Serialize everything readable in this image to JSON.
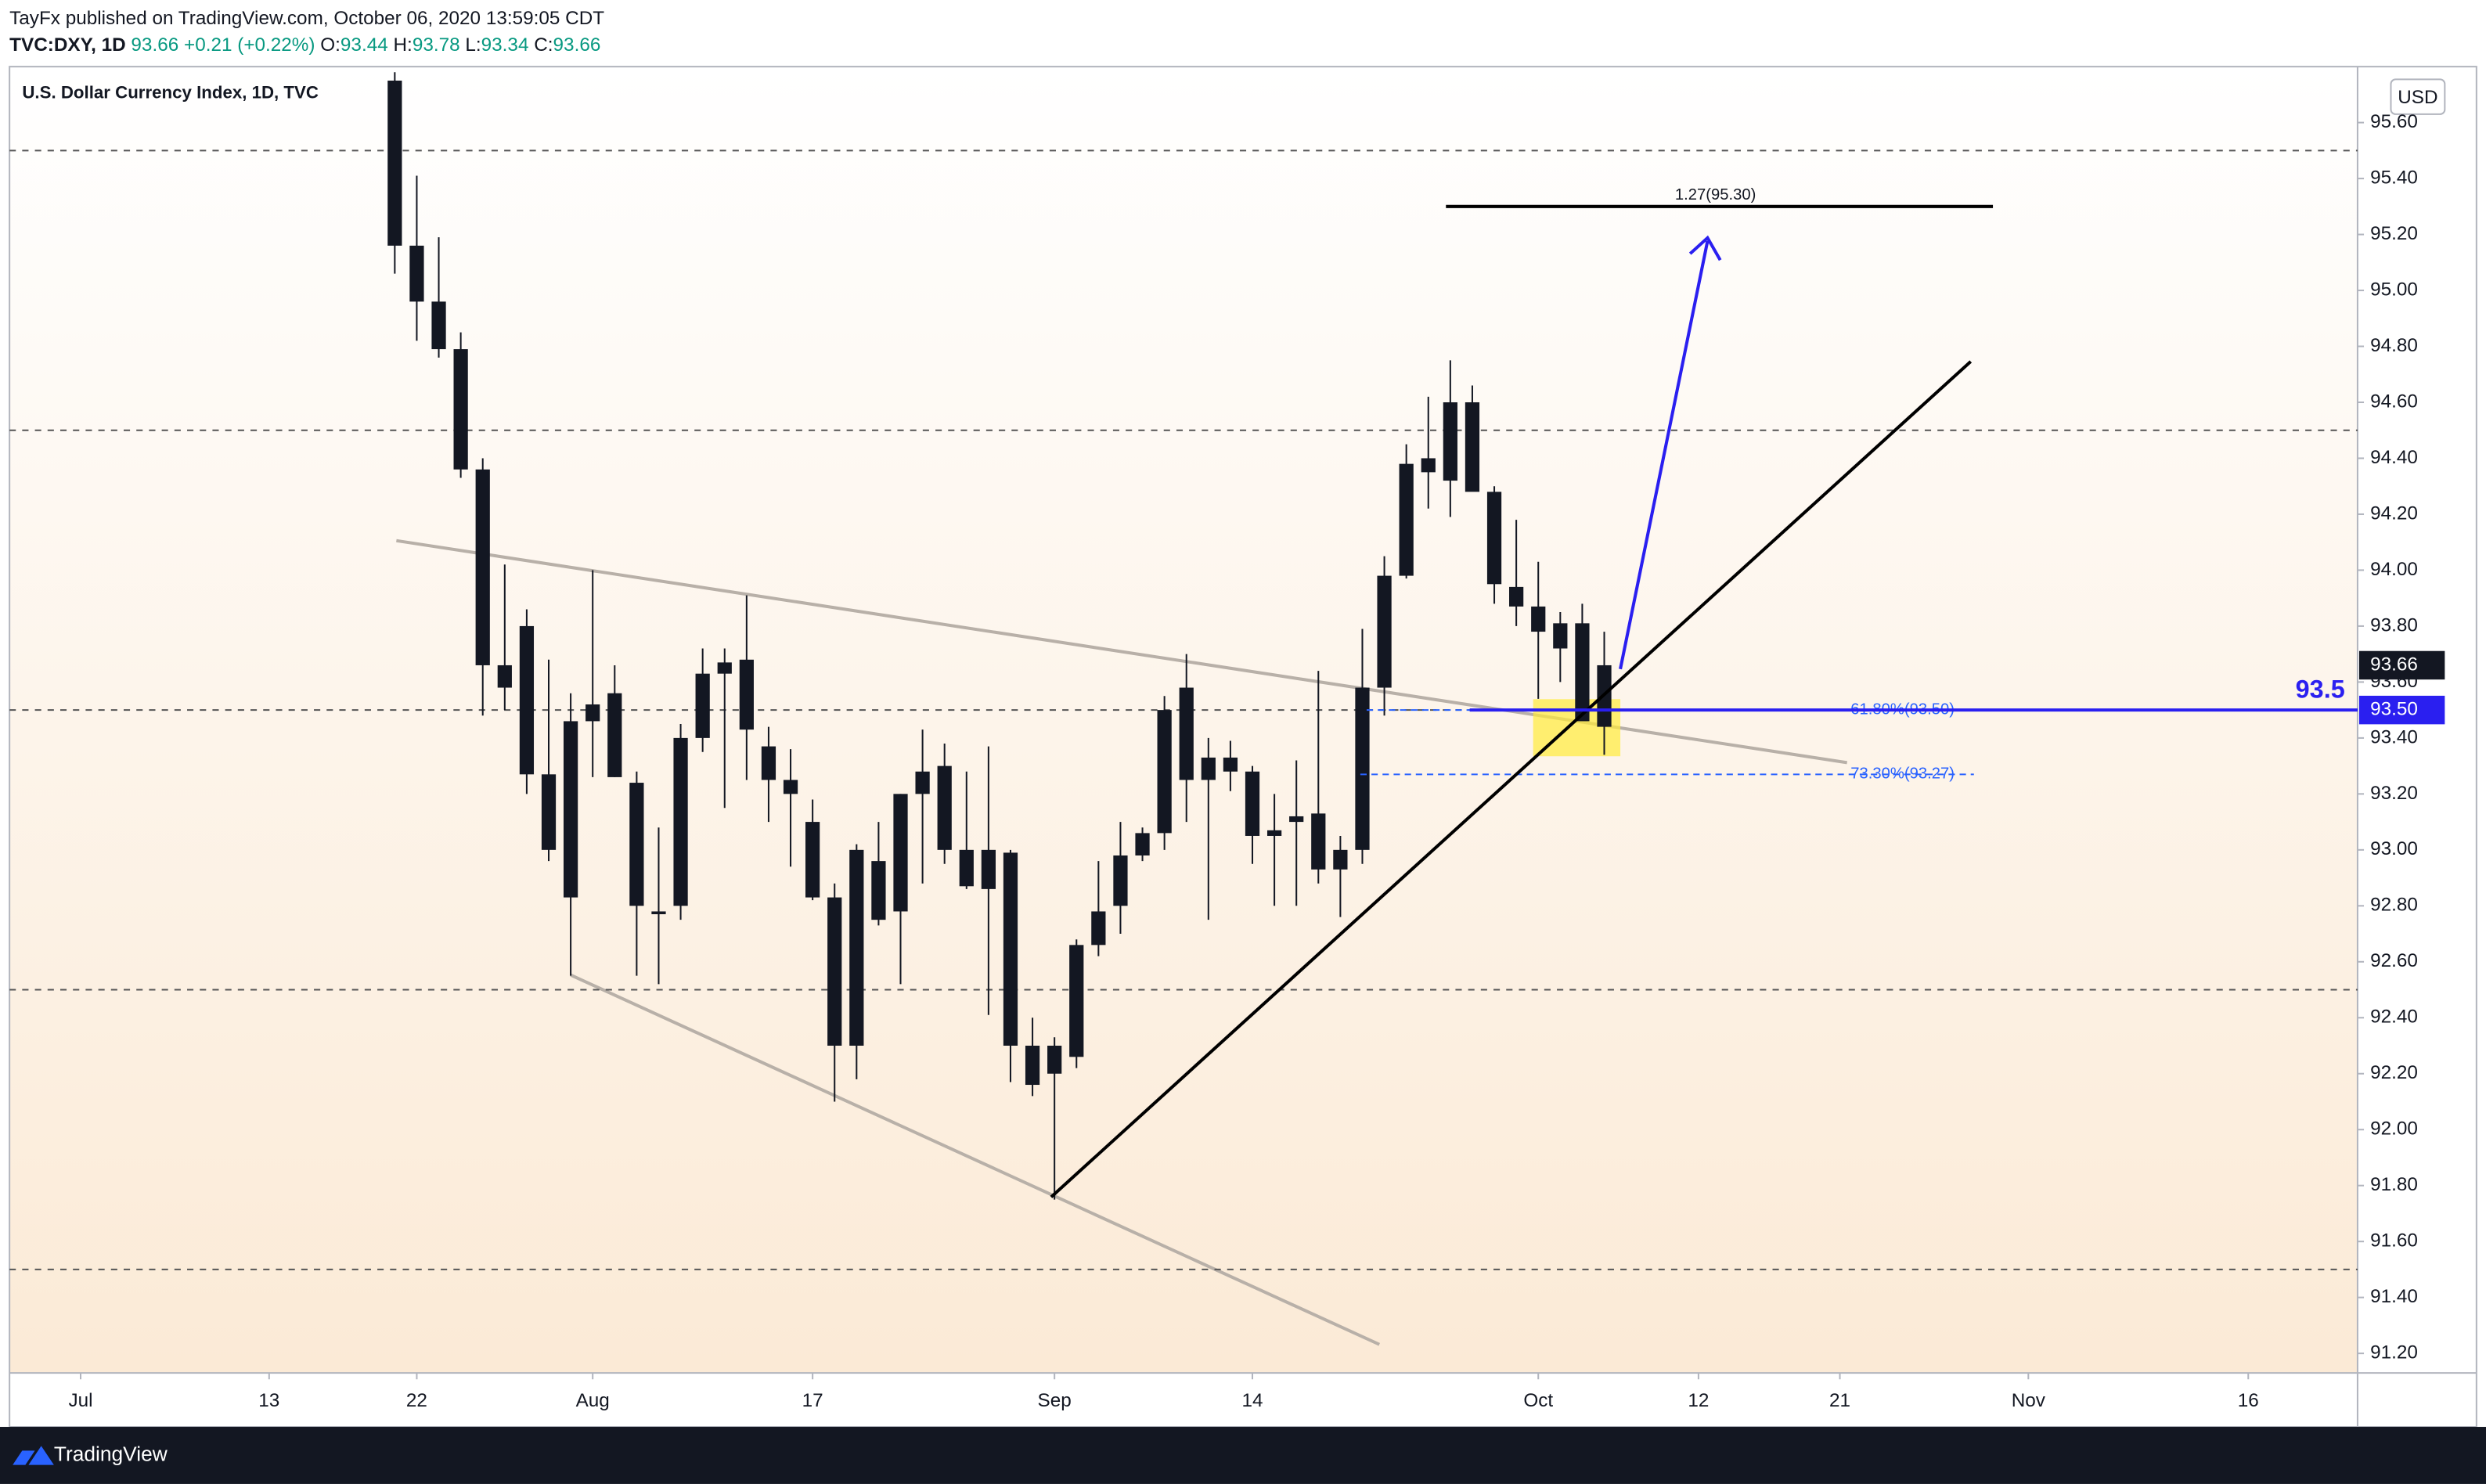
{
  "header": {
    "publisher": "TayFx published on TradingView.com, October 06, 2020 13:59:05 CDT",
    "symbol": "TVC:DXY, 1D",
    "last": "93.66",
    "change": "+0.21 (+0.22%)",
    "ohlc": [
      {
        "key": "O:",
        "value": "93.44"
      },
      {
        "key": "H:",
        "value": "93.78"
      },
      {
        "key": "L:",
        "value": "93.34"
      },
      {
        "key": "C:",
        "value": "93.66"
      }
    ]
  },
  "chart_data": {
    "type": "candlestick",
    "title": "U.S. Dollar Currency Index, 1D, TVC",
    "currency": "USD",
    "color": "#131722",
    "x": [
      "Jul 21",
      "Jul 22",
      "Jul 23",
      "Jul 24",
      "Jul 27",
      "Jul 28",
      "Jul 29",
      "Jul 30",
      "Jul 31",
      "Aug 3",
      "Aug 4",
      "Aug 5",
      "Aug 6",
      "Aug 7",
      "Aug 10",
      "Aug 11",
      "Aug 12",
      "Aug 13",
      "Aug 14",
      "Aug 17",
      "Aug 18",
      "Aug 19",
      "Aug 20",
      "Aug 21",
      "Aug 24",
      "Aug 25",
      "Aug 26",
      "Aug 27",
      "Aug 28",
      "Aug 31",
      "Sep 1",
      "Sep 2",
      "Sep 3",
      "Sep 4",
      "Sep 7",
      "Sep 8",
      "Sep 9",
      "Sep 10",
      "Sep 11",
      "Sep 14",
      "Sep 15",
      "Sep 16",
      "Sep 17",
      "Sep 18",
      "Sep 21",
      "Sep 22",
      "Sep 23",
      "Sep 24",
      "Sep 25",
      "Sep 28",
      "Sep 29",
      "Sep 30",
      "Oct 1",
      "Oct 2",
      "Oct 5",
      "Oct 6"
    ],
    "open": [
      95.75,
      95.16,
      94.96,
      94.79,
      94.36,
      93.66,
      93.8,
      93.27,
      92.83,
      93.46,
      93.56,
      93.24,
      92.78,
      92.8,
      93.4,
      93.63,
      93.68,
      93.37,
      93.25,
      93.1,
      92.83,
      92.3,
      92.96,
      92.78,
      93.2,
      93.3,
      93.0,
      93.0,
      92.99,
      92.3,
      92.3,
      92.26,
      92.66,
      92.8,
      92.98,
      93.06,
      93.58,
      93.25,
      93.33,
      93.28,
      93.05,
      93.1,
      93.13,
      92.93,
      93.0,
      93.58,
      93.98,
      94.4,
      94.32,
      94.6,
      94.28,
      93.94,
      93.87,
      93.72,
      93.81,
      93.44
    ],
    "high": [
      95.78,
      95.41,
      95.19,
      94.85,
      94.4,
      94.02,
      93.86,
      93.68,
      93.56,
      94.0,
      93.66,
      93.28,
      93.08,
      93.45,
      93.72,
      93.72,
      93.91,
      93.44,
      93.36,
      93.18,
      92.88,
      93.02,
      93.1,
      93.2,
      93.43,
      93.38,
      93.28,
      93.37,
      93.0,
      92.4,
      92.33,
      92.68,
      92.96,
      93.1,
      93.08,
      93.55,
      93.7,
      93.4,
      93.39,
      93.3,
      93.2,
      93.32,
      93.64,
      93.05,
      93.79,
      94.05,
      94.45,
      94.62,
      94.75,
      94.66,
      94.3,
      94.18,
      94.03,
      93.85,
      93.88,
      93.78
    ],
    "low": [
      95.06,
      94.82,
      94.76,
      94.33,
      93.48,
      93.5,
      93.2,
      92.96,
      92.55,
      93.26,
      93.26,
      92.55,
      92.52,
      92.75,
      93.35,
      93.15,
      93.25,
      93.1,
      92.94,
      92.82,
      92.1,
      92.18,
      92.73,
      92.52,
      92.88,
      92.95,
      92.86,
      92.41,
      92.17,
      92.12,
      91.75,
      92.22,
      92.62,
      92.7,
      92.96,
      93.0,
      93.1,
      92.75,
      93.21,
      92.95,
      92.8,
      92.8,
      92.88,
      92.76,
      92.95,
      93.48,
      93.97,
      94.22,
      94.19,
      94.3,
      93.88,
      93.8,
      93.54,
      93.6,
      93.47,
      93.34
    ],
    "close": [
      95.16,
      94.96,
      94.79,
      94.36,
      93.66,
      93.58,
      93.27,
      93.0,
      93.46,
      93.52,
      93.26,
      92.8,
      92.77,
      93.4,
      93.63,
      93.67,
      93.43,
      93.25,
      93.2,
      92.83,
      92.3,
      93.0,
      92.75,
      93.2,
      93.28,
      93.0,
      92.87,
      92.86,
      92.3,
      92.16,
      92.2,
      92.66,
      92.78,
      92.98,
      93.06,
      93.5,
      93.25,
      93.33,
      93.28,
      93.05,
      93.07,
      93.12,
      92.93,
      93.0,
      93.58,
      93.98,
      94.38,
      94.35,
      94.6,
      94.28,
      93.95,
      93.87,
      93.78,
      93.81,
      93.46,
      93.66
    ],
    "ylim": [
      91.13,
      95.8
    ],
    "yticks": [
      {
        "value": 91.2,
        "label": "91.20"
      },
      {
        "value": 91.4,
        "label": "91.40"
      },
      {
        "value": 91.6,
        "label": "91.60"
      },
      {
        "value": 91.8,
        "label": "91.80"
      },
      {
        "value": 92,
        "label": "92.00"
      },
      {
        "value": 92.2,
        "label": "92.20"
      },
      {
        "value": 92.4,
        "label": "92.40"
      },
      {
        "value": 92.6,
        "label": "92.60"
      },
      {
        "value": 92.8,
        "label": "92.80"
      },
      {
        "value": 93,
        "label": "93.00"
      },
      {
        "value": 93.2,
        "label": "93.20"
      },
      {
        "value": 93.4,
        "label": "93.40"
      },
      {
        "value": 93.6,
        "label": "93.60"
      },
      {
        "value": 93.8,
        "label": "93.80"
      },
      {
        "value": 94,
        "label": "94.00"
      },
      {
        "value": 94.2,
        "label": "94.20"
      },
      {
        "value": 94.4,
        "label": "94.40"
      },
      {
        "value": 94.6,
        "label": "94.60"
      },
      {
        "value": 94.8,
        "label": "94.80"
      },
      {
        "value": 95,
        "label": "95.00"
      },
      {
        "value": 95.2,
        "label": "95.20"
      },
      {
        "value": 95.4,
        "label": "95.40"
      },
      {
        "value": 95.6,
        "label": "95.60"
      }
    ],
    "xticks": [
      {
        "value": "Jul 1",
        "label": "Jul"
      },
      {
        "value": "Jul 13",
        "label": "13"
      },
      {
        "value": "Jul 22",
        "label": "22"
      },
      {
        "value": "Aug 3",
        "label": "Aug"
      },
      {
        "value": "Aug 17",
        "label": "17"
      },
      {
        "value": "Sep 1",
        "label": "Sep"
      },
      {
        "value": "Sep 14",
        "label": "14"
      },
      {
        "value": "Oct 1",
        "label": "Oct"
      },
      {
        "value": "Oct 12",
        "label": "12"
      },
      {
        "value": "Oct 21",
        "label": "21"
      },
      {
        "value": "Nov 2",
        "label": "Nov"
      },
      {
        "value": "Nov 16",
        "label": "16"
      }
    ],
    "grid": false,
    "levels": [
      95.5,
      94.5,
      93.5,
      92.5,
      91.5
    ],
    "fib": [
      {
        "value": 93.5,
        "label": "61.80%(93.50)"
      },
      {
        "value": 93.27,
        "label": "73.30%(93.27)"
      }
    ],
    "target": {
      "value": 95.3,
      "label": "1.27(95.30)"
    },
    "last_price": 93.66,
    "marked_level": {
      "value": 93.5,
      "label": "93.50"
    }
  },
  "footer": {
    "brand": "TradingView"
  }
}
